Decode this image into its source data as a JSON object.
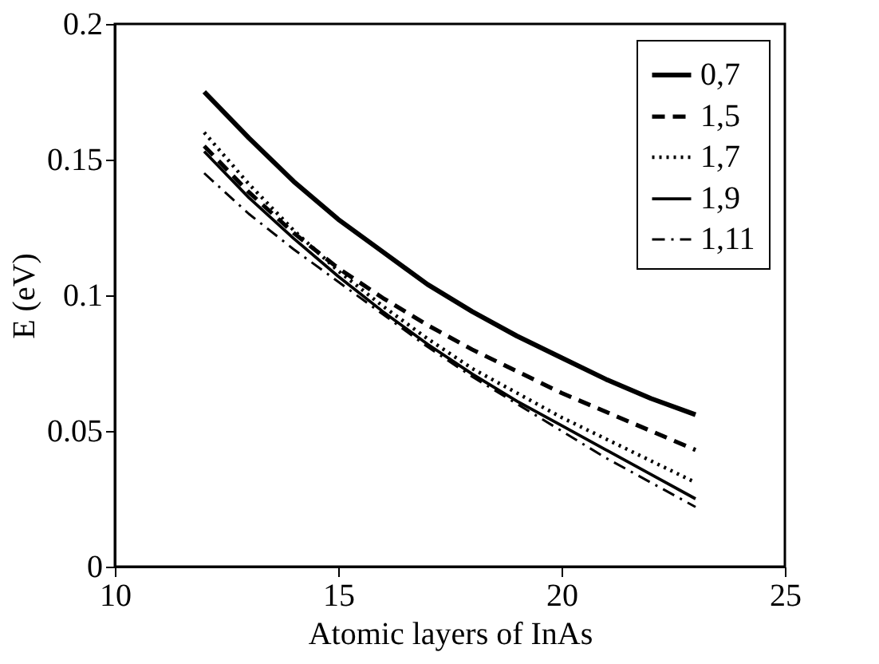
{
  "chart_data": {
    "type": "line",
    "xlabel": "Atomic layers of InAs",
    "ylabel": "E (eV)",
    "x": [
      12,
      13,
      14,
      15,
      16,
      17,
      18,
      19,
      20,
      21,
      22,
      23
    ],
    "xlim": [
      10,
      25
    ],
    "xticks": [
      10,
      15,
      20,
      25
    ],
    "ylim": [
      0,
      0.2
    ],
    "yticks": [
      0,
      0.05,
      {
        "value": 0.1,
        "label": "0.1"
      },
      0.15,
      {
        "value": 0.2,
        "label": "0.2"
      }
    ],
    "grid": false,
    "legend": "top right",
    "marker": "none",
    "series": [
      {
        "name": "0,7",
        "color": "#000000",
        "line_style": "solid",
        "values": [
          0.175,
          0.158,
          0.142,
          0.128,
          0.116,
          0.104,
          0.094,
          0.085,
          0.077,
          0.069,
          0.062,
          0.056
        ]
      },
      {
        "name": "1,5",
        "color": "#000000",
        "line_style": "dashed",
        "values": [
          0.155,
          0.138,
          0.123,
          0.11,
          0.099,
          0.089,
          0.08,
          0.072,
          0.064,
          0.057,
          0.05,
          0.043
        ]
      },
      {
        "name": "1,7",
        "color": "#000000",
        "line_style": "dotted",
        "values": [
          0.16,
          0.141,
          0.124,
          0.109,
          0.096,
          0.084,
          0.073,
          0.064,
          0.055,
          0.047,
          0.039,
          0.031
        ]
      },
      {
        "name": "1,9",
        "color": "#000000",
        "line_style": "solid",
        "values": [
          0.153,
          0.136,
          0.121,
          0.107,
          0.094,
          0.082,
          0.071,
          0.061,
          0.052,
          0.043,
          0.034,
          0.025
        ]
      },
      {
        "name": "1,11",
        "color": "#000000",
        "line_style": "dashdot",
        "values": [
          0.145,
          0.13,
          0.117,
          0.105,
          0.093,
          0.081,
          0.07,
          0.06,
          0.05,
          0.04,
          0.031,
          0.022
        ]
      }
    ]
  }
}
